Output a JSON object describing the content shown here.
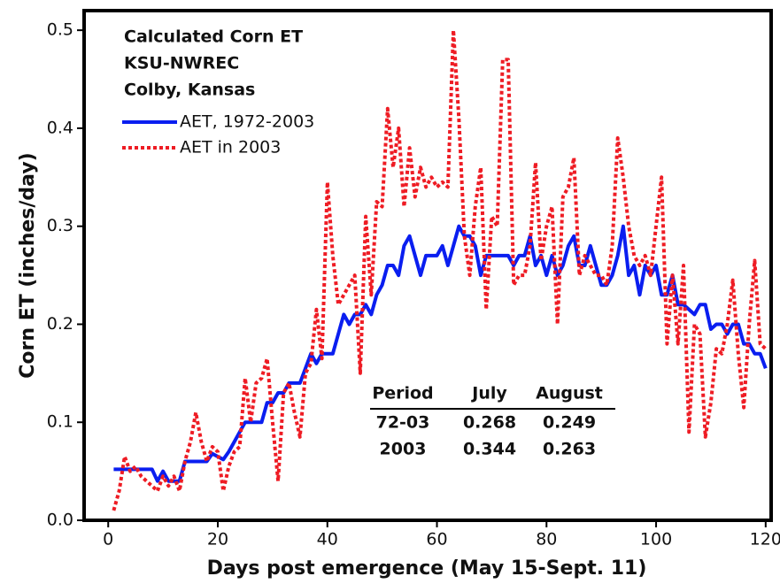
{
  "chart_data": {
    "type": "line",
    "annotations": [
      "Calculated Corn ET",
      "KSU-NWREC",
      "Colby, Kansas"
    ],
    "xlabel": "Days post emergence (May 15-Sept. 11)",
    "ylabel": "Corn ET (inches/day)",
    "xlim": [
      -4.4,
      121
    ],
    "ylim": [
      0,
      0.52
    ],
    "xticks": [
      0,
      20,
      40,
      60,
      80,
      100,
      120
    ],
    "yticks": [
      {
        "value": 0,
        "label": "0.0"
      },
      0.1,
      0.2,
      0.3,
      0.4,
      0.5
    ],
    "x": [
      1,
      2,
      3,
      4,
      5,
      6,
      7,
      8,
      9,
      10,
      11,
      12,
      13,
      14,
      15,
      16,
      17,
      18,
      19,
      20,
      21,
      22,
      23,
      24,
      25,
      26,
      27,
      28,
      29,
      30,
      31,
      32,
      33,
      34,
      35,
      36,
      37,
      38,
      39,
      40,
      41,
      42,
      43,
      44,
      45,
      46,
      47,
      48,
      49,
      50,
      51,
      52,
      53,
      54,
      55,
      56,
      57,
      58,
      59,
      60,
      61,
      62,
      63,
      64,
      65,
      66,
      67,
      68,
      69,
      70,
      71,
      72,
      73,
      74,
      75,
      76,
      77,
      78,
      79,
      80,
      81,
      82,
      83,
      84,
      85,
      86,
      87,
      88,
      89,
      90,
      91,
      92,
      93,
      94,
      95,
      96,
      97,
      98,
      99,
      100,
      101,
      102,
      103,
      104,
      105,
      106,
      107,
      108,
      109,
      110,
      111,
      112,
      113,
      114,
      115,
      116,
      117,
      118,
      119,
      120
    ],
    "series": [
      {
        "name": "AET, 1972-2003",
        "color": "#0a1ef0",
        "style": "solid",
        "values": [
          0.052,
          0.052,
          0.052,
          0.052,
          0.052,
          0.052,
          0.052,
          0.052,
          0.04,
          0.05,
          0.04,
          0.04,
          0.04,
          0.06,
          0.06,
          0.06,
          0.06,
          0.06,
          0.068,
          0.065,
          0.062,
          0.07,
          0.08,
          0.09,
          0.1,
          0.1,
          0.1,
          0.1,
          0.12,
          0.12,
          0.13,
          0.13,
          0.14,
          0.14,
          0.14,
          0.155,
          0.17,
          0.16,
          0.17,
          0.17,
          0.17,
          0.19,
          0.21,
          0.2,
          0.21,
          0.21,
          0.22,
          0.21,
          0.23,
          0.24,
          0.26,
          0.26,
          0.25,
          0.28,
          0.29,
          0.27,
          0.25,
          0.27,
          0.27,
          0.27,
          0.28,
          0.26,
          0.28,
          0.3,
          0.29,
          0.29,
          0.28,
          0.25,
          0.27,
          0.27,
          0.27,
          0.27,
          0.27,
          0.26,
          0.27,
          0.27,
          0.29,
          0.26,
          0.27,
          0.25,
          0.27,
          0.25,
          0.26,
          0.28,
          0.29,
          0.26,
          0.26,
          0.28,
          0.26,
          0.24,
          0.24,
          0.25,
          0.27,
          0.3,
          0.25,
          0.26,
          0.23,
          0.26,
          0.25,
          0.26,
          0.23,
          0.23,
          0.25,
          0.22,
          0.22,
          0.215,
          0.21,
          0.22,
          0.22,
          0.195,
          0.2,
          0.2,
          0.19,
          0.2,
          0.2,
          0.18,
          0.18,
          0.17,
          0.17,
          0.155
        ]
      },
      {
        "name": "AET in 2003",
        "color": "#ee1c24",
        "style": "dotted",
        "values": [
          0.01,
          0.03,
          0.065,
          0.05,
          0.055,
          0.045,
          0.04,
          0.035,
          0.03,
          0.045,
          0.035,
          0.045,
          0.03,
          0.06,
          0.08,
          0.11,
          0.08,
          0.06,
          0.075,
          0.07,
          0.03,
          0.055,
          0.07,
          0.075,
          0.145,
          0.1,
          0.14,
          0.145,
          0.165,
          0.1,
          0.04,
          0.13,
          0.14,
          0.11,
          0.085,
          0.15,
          0.16,
          0.215,
          0.165,
          0.345,
          0.27,
          0.22,
          0.23,
          0.24,
          0.25,
          0.15,
          0.31,
          0.23,
          0.325,
          0.32,
          0.42,
          0.36,
          0.4,
          0.32,
          0.38,
          0.33,
          0.36,
          0.34,
          0.35,
          0.34,
          0.345,
          0.34,
          0.5,
          0.41,
          0.29,
          0.25,
          0.32,
          0.36,
          0.215,
          0.31,
          0.3,
          0.47,
          0.47,
          0.24,
          0.25,
          0.25,
          0.28,
          0.365,
          0.265,
          0.3,
          0.32,
          0.2,
          0.33,
          0.34,
          0.37,
          0.25,
          0.27,
          0.26,
          0.25,
          0.25,
          0.24,
          0.28,
          0.39,
          0.35,
          0.3,
          0.27,
          0.26,
          0.27,
          0.25,
          0.3,
          0.35,
          0.18,
          0.25,
          0.18,
          0.26,
          0.09,
          0.2,
          0.19,
          0.085,
          0.12,
          0.175,
          0.17,
          0.2,
          0.245,
          0.17,
          0.115,
          0.2,
          0.265,
          0.18,
          0.175
        ]
      }
    ],
    "table": {
      "columns": [
        "Period",
        "July",
        "August"
      ],
      "rows": [
        [
          "72-03",
          0.268,
          0.249
        ],
        [
          "2003",
          0.344,
          0.263
        ]
      ]
    }
  }
}
